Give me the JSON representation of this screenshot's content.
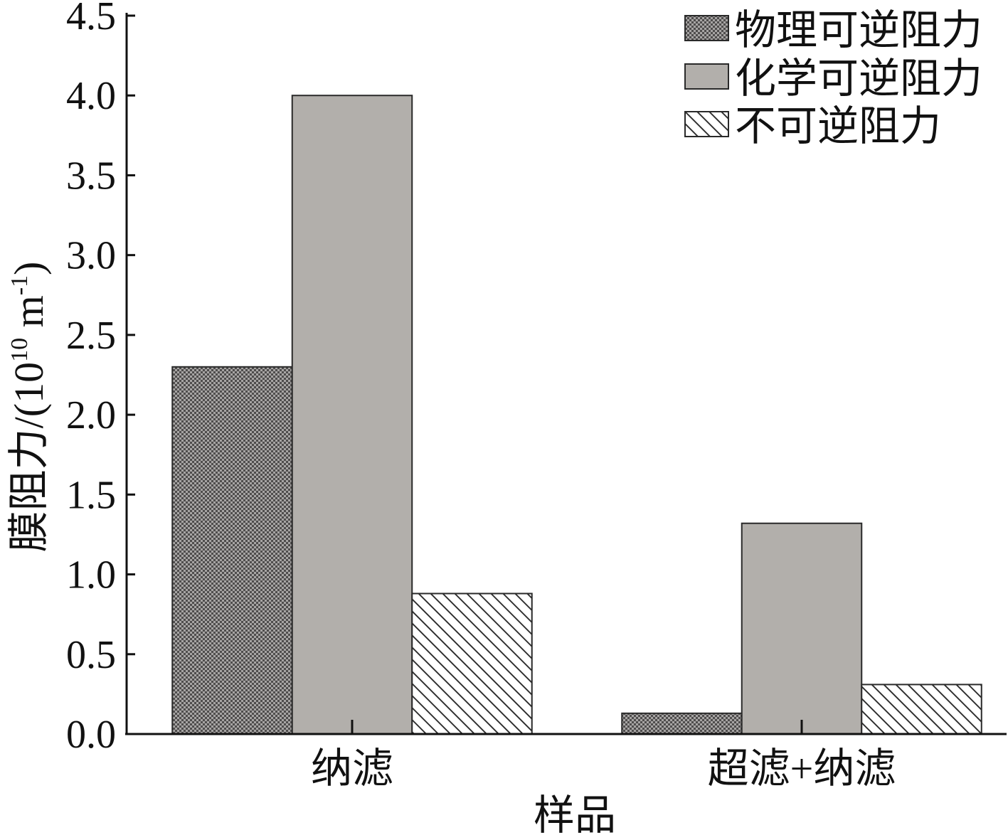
{
  "chart_data": {
    "type": "bar",
    "categories": [
      "纳滤",
      "超滤+纳滤"
    ],
    "series": [
      {
        "name": "物理可逆阻力",
        "values": [
          2.3,
          0.13
        ],
        "color": "#7e7c7b",
        "pattern": "stipple"
      },
      {
        "name": "化学可逆阻力",
        "values": [
          4.0,
          1.32
        ],
        "color": "#b2afab",
        "pattern": "solid"
      },
      {
        "name": "不可逆阻力",
        "values": [
          0.88,
          0.31
        ],
        "color": "#ffffff",
        "pattern": "diagonal-hatch"
      }
    ],
    "xlabel": "样品",
    "ylabel": {
      "text": "膜阻力/(10",
      "exp": "10",
      "unit": " m",
      "unit_exp": "-1",
      "close": ")"
    },
    "ylim": [
      0,
      4.5
    ],
    "yticks": [
      "0.0",
      "0.5",
      "1.0",
      "1.5",
      "2.0",
      "2.5",
      "3.0",
      "3.5",
      "4.0",
      "4.5"
    ],
    "legend_position": "top-right",
    "grid": false
  }
}
